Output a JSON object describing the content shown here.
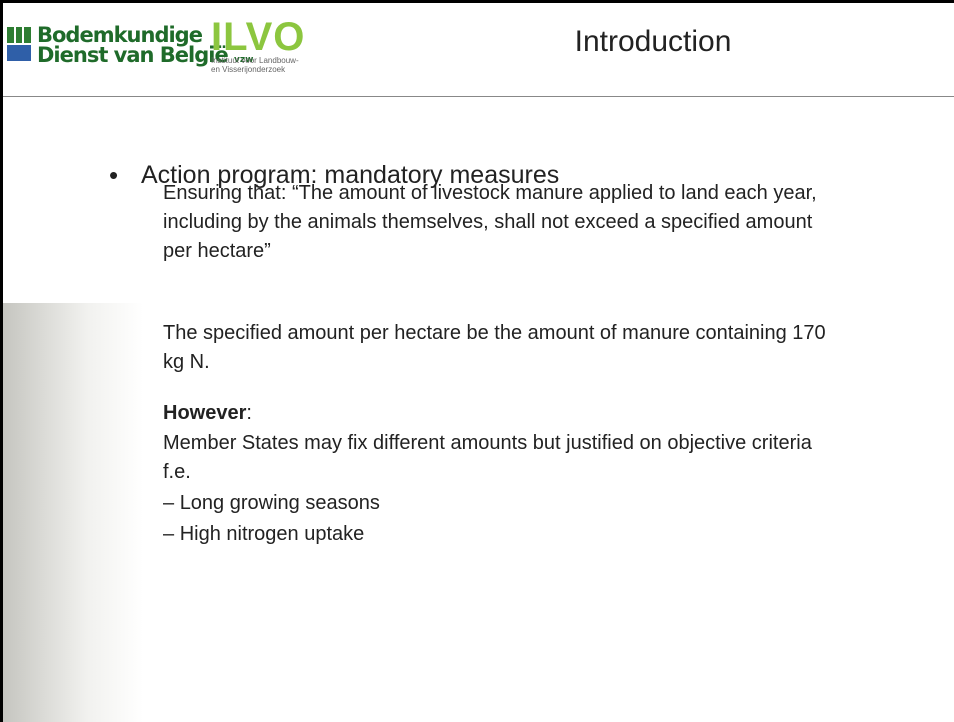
{
  "header": {
    "logo_left": {
      "line1": "Bodemkundige",
      "line2": "Dienst van België",
      "suffix": "vzw"
    },
    "logo_right": {
      "name": "ILVO",
      "line1": "Instituut voor Landbouw-",
      "line2": "en Visserijonderzoek"
    },
    "title": "Introduction"
  },
  "body": {
    "bullet": "Action program: mandatory measures",
    "paragraph1": "Ensuring that: “The amount of livestock manure applied to land each year, including by the animals themselves, shall not exceed a specified amount per hectare”",
    "paragraph2": "The specified amount per hectare be the amount of manure containing 170 kg N.",
    "however_bold": "However",
    "however_rest": ":",
    "paragraph3": "Member States may fix different amounts but justified on objective criteria f.e.",
    "list": [
      "Long growing seasons",
      "High nitrogen uptake"
    ]
  }
}
